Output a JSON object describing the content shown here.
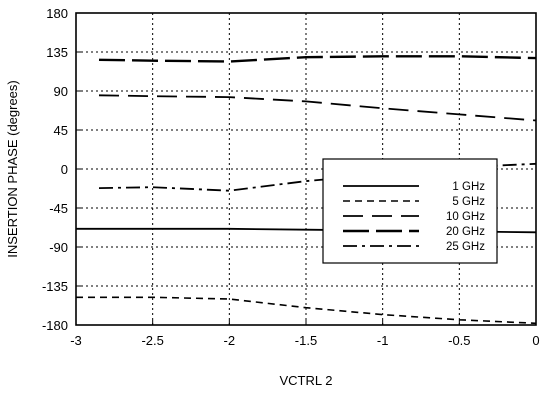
{
  "chart_data": {
    "type": "line",
    "title": "",
    "xlabel": "VCTRL 2",
    "ylabel": "INSERTION PHASE (degrees)",
    "xlim": [
      -3,
      0
    ],
    "ylim": [
      -180,
      180
    ],
    "xticks": [
      -3,
      -2.5,
      -2,
      -1.5,
      -1,
      -0.5,
      0
    ],
    "xtick_labels": [
      "-3",
      "-2.5",
      "-2",
      "-1.5",
      "-1",
      "-0.5",
      "0"
    ],
    "yticks": [
      180,
      135,
      90,
      45,
      0,
      -45,
      -90,
      -135,
      -180
    ],
    "ytick_labels": [
      "180",
      "135",
      "90",
      "45",
      "0",
      "-45",
      "-90",
      "-135",
      "-180"
    ],
    "grid": true,
    "legend_position": "center-right",
    "series": [
      {
        "name": "1 GHz",
        "style": "solid",
        "x": [
          -3,
          -2.5,
          -2,
          -1.5,
          -1,
          -0.5,
          0
        ],
        "y": [
          -69,
          -69,
          -69,
          -70,
          -71,
          -72,
          -73
        ]
      },
      {
        "name": "5 GHz",
        "style": "short-dash",
        "x": [
          -3,
          -2.5,
          -2,
          -1.5,
          -1,
          -0.5,
          0
        ],
        "y": [
          -148,
          -148,
          -150,
          -160,
          -168,
          -174,
          -178
        ]
      },
      {
        "name": "10 GHz",
        "style": "long-dash",
        "x": [
          -2.85,
          -2.5,
          -2,
          -1.5,
          -1,
          -0.5,
          0
        ],
        "y": [
          85,
          84,
          83,
          78,
          70,
          63,
          56
        ]
      },
      {
        "name": "20 GHz",
        "style": "long-dash-heavy",
        "x": [
          -2.85,
          -2.5,
          -2,
          -1.5,
          -1,
          -0.5,
          0
        ],
        "y": [
          126,
          125,
          124,
          129,
          130,
          130,
          128
        ]
      },
      {
        "name": "25 GHz",
        "style": "dash-dot",
        "x": [
          -2.85,
          -2.5,
          -2,
          -1.5,
          -1,
          -0.5,
          0
        ],
        "y": [
          -22,
          -21,
          -25,
          -14,
          -6,
          2,
          6
        ]
      }
    ]
  }
}
